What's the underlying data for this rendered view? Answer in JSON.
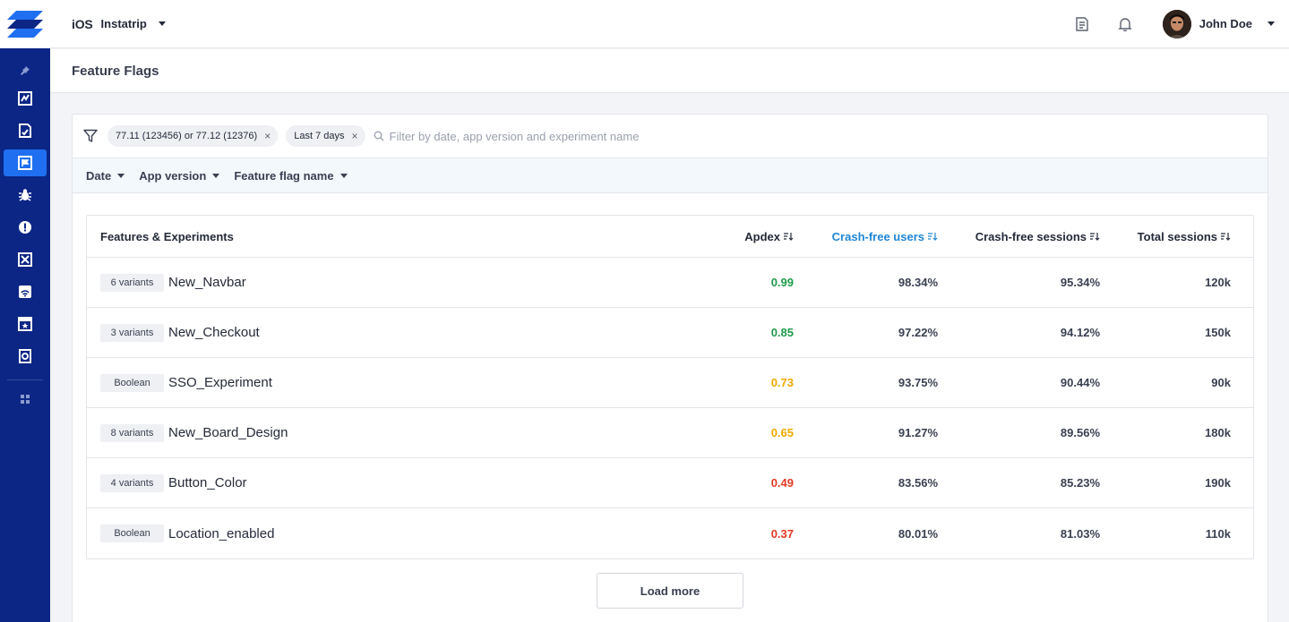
{
  "sidebar": {
    "logo_icon": "brand-logo-icon",
    "items": [
      {
        "name": "pin-icon",
        "active": false
      },
      {
        "name": "dashboard-icon",
        "active": false
      },
      {
        "name": "reports-icon",
        "active": false
      },
      {
        "name": "feature-flags-icon",
        "active": true
      },
      {
        "name": "bug-icon",
        "active": false
      },
      {
        "name": "crash-alert-icon",
        "active": false
      },
      {
        "name": "exceptions-icon",
        "active": false
      },
      {
        "name": "network-icon",
        "active": false
      },
      {
        "name": "ratings-icon",
        "active": false
      },
      {
        "name": "releases-icon",
        "active": false
      }
    ],
    "bottom_icon": "apps-grid-icon"
  },
  "topbar": {
    "platform": "iOS",
    "app_name": "Instatrip",
    "user_name": "John Doe"
  },
  "page": {
    "title": "Feature Flags"
  },
  "filters": {
    "chips": [
      {
        "label": "77.11 (123456) or 77.12 (12376)"
      },
      {
        "label": "Last 7 days"
      }
    ],
    "chip_remove": "×",
    "search_placeholder": "Filter by date, app version and experiment name",
    "search_value": "",
    "dropdowns": [
      "Date",
      "App version",
      "Feature flag name"
    ]
  },
  "table": {
    "headers": {
      "name": "Features & Experiments",
      "apdex": "Apdex",
      "crash_free_users": "Crash-free users",
      "crash_free_sessions": "Crash-free sessions",
      "total_sessions": "Total sessions"
    },
    "sorted_column": "crash_free_users",
    "rows": [
      {
        "badge": "6 variants",
        "name": "New_Navbar",
        "apdex": "0.99",
        "apdex_level": "green",
        "users": "98.34%",
        "sessions": "95.34%",
        "total": "120k"
      },
      {
        "badge": "3 variants",
        "name": "New_Checkout",
        "apdex": "0.85",
        "apdex_level": "green",
        "users": "97.22%",
        "sessions": "94.12%",
        "total": "150k"
      },
      {
        "badge": "Boolean",
        "name": "SSO_Experiment",
        "apdex": "0.73",
        "apdex_level": "amber",
        "users": "93.75%",
        "sessions": "90.44%",
        "total": "90k"
      },
      {
        "badge": "8 variants",
        "name": "New_Board_Design",
        "apdex": "0.65",
        "apdex_level": "amber",
        "users": "91.27%",
        "sessions": "89.56%",
        "total": "180k"
      },
      {
        "badge": "4 variants",
        "name": "Button_Color",
        "apdex": "0.49",
        "apdex_level": "red",
        "users": "83.56%",
        "sessions": "85.23%",
        "total": "190k"
      },
      {
        "badge": "Boolean",
        "name": "Location_enabled",
        "apdex": "0.37",
        "apdex_level": "red",
        "users": "80.01%",
        "sessions": "81.03%",
        "total": "110k"
      }
    ]
  },
  "load_more_label": "Load more",
  "colors": {
    "sidebar_bg": "#0b2685",
    "accent": "#1f6ff0",
    "sorted_header": "#1f86d6",
    "apdex_green": "#1e9b4a",
    "apdex_amber": "#f0a800",
    "apdex_red": "#e23a22"
  }
}
